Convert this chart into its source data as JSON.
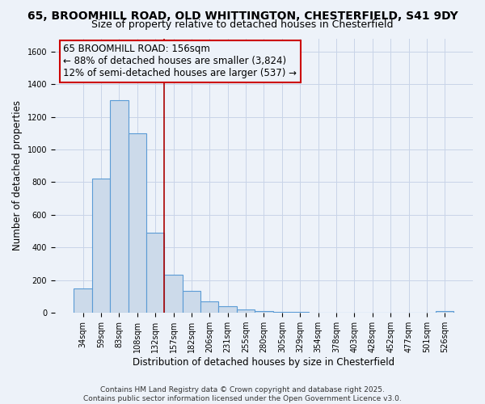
{
  "title_line1": "65, BROOMHILL ROAD, OLD WHITTINGTON, CHESTERFIELD, S41 9DY",
  "title_line2": "Size of property relative to detached houses in Chesterfield",
  "xlabel": "Distribution of detached houses by size in Chesterfield",
  "ylabel": "Number of detached properties",
  "bar_color": "#ccdaea",
  "bar_edge_color": "#5b9bd5",
  "background_color": "#edf2f9",
  "categories": [
    "34sqm",
    "59sqm",
    "83sqm",
    "108sqm",
    "132sqm",
    "157sqm",
    "182sqm",
    "206sqm",
    "231sqm",
    "255sqm",
    "280sqm",
    "305sqm",
    "329sqm",
    "354sqm",
    "378sqm",
    "403sqm",
    "428sqm",
    "452sqm",
    "477sqm",
    "501sqm",
    "526sqm"
  ],
  "values": [
    150,
    820,
    1300,
    1100,
    490,
    235,
    135,
    70,
    40,
    22,
    10,
    5,
    5,
    3,
    3,
    2,
    2,
    2,
    2,
    2,
    10
  ],
  "vline_after_index": 4,
  "vline_color": "#aa0000",
  "annotation_text": "65 BROOMHILL ROAD: 156sqm\n← 88% of detached houses are smaller (3,824)\n12% of semi-detached houses are larger (537) →",
  "annotation_box_edgecolor": "#cc0000",
  "ylim": [
    0,
    1680
  ],
  "yticks": [
    0,
    200,
    400,
    600,
    800,
    1000,
    1200,
    1400,
    1600
  ],
  "footnote": "Contains HM Land Registry data © Crown copyright and database right 2025.\nContains public sector information licensed under the Open Government Licence v3.0.",
  "grid_color": "#c8d4e8",
  "title_fontsize": 10,
  "subtitle_fontsize": 9,
  "axis_label_fontsize": 8.5,
  "tick_fontsize": 7,
  "annotation_fontsize": 8.5,
  "footnote_fontsize": 6.5
}
